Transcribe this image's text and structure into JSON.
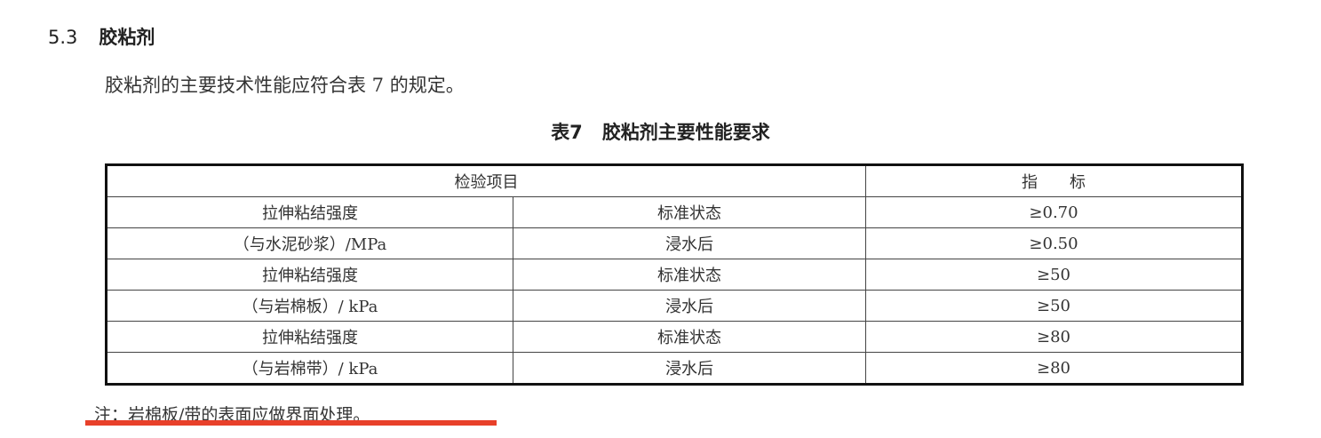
{
  "section": {
    "number": "5.3",
    "title": "胶粘剂"
  },
  "paragraph": "胶粘剂的主要技术性能应符合表 7 的规定。",
  "table_caption": {
    "number": "表7",
    "title": "胶粘剂主要性能要求"
  },
  "table": {
    "headers": [
      "检验项目",
      "指　　标"
    ],
    "groups": [
      {
        "item_line1": "拉伸粘结强度",
        "item_line2": "（与水泥砂浆）/MPa",
        "rows": [
          {
            "condition": "标准状态",
            "value": "≥0.70"
          },
          {
            "condition": "浸水后",
            "value": "≥0.50"
          }
        ]
      },
      {
        "item_line1": "拉伸粘结强度",
        "item_line2": "（与岩棉板）/ kPa",
        "rows": [
          {
            "condition": "标准状态",
            "value": "≥50"
          },
          {
            "condition": "浸水后",
            "value": "≥50"
          }
        ]
      },
      {
        "item_line1": "拉伸粘结强度",
        "item_line2": "（与岩棉带）/ kPa",
        "rows": [
          {
            "condition": "标准状态",
            "value": "≥80"
          },
          {
            "condition": "浸水后",
            "value": "≥80"
          }
        ]
      }
    ]
  },
  "note": "注：岩棉板/带的表面应做界面处理。",
  "highlight_color": "#e8402a"
}
